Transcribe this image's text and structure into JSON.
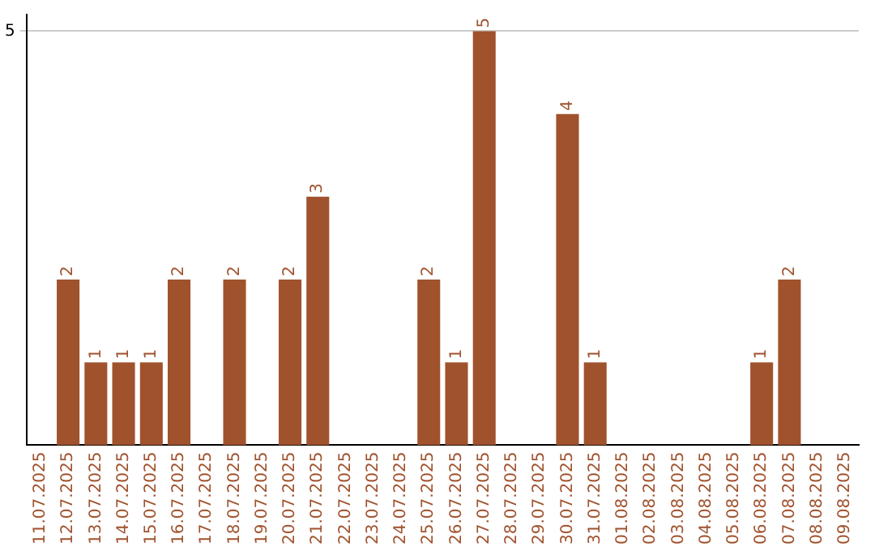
{
  "chart_data": {
    "type": "bar",
    "categories": [
      "11.07.2025",
      "12.07.2025",
      "13.07.2025",
      "14.07.2025",
      "15.07.2025",
      "16.07.2025",
      "17.07.2025",
      "18.07.2025",
      "19.07.2025",
      "20.07.2025",
      "21.07.2025",
      "22.07.2025",
      "23.07.2025",
      "24.07.2025",
      "25.07.2025",
      "26.07.2025",
      "27.07.2025",
      "28.07.2025",
      "29.07.2025",
      "30.07.2025",
      "31.07.2025",
      "01.08.2025",
      "02.08.2025",
      "03.08.2025",
      "04.08.2025",
      "05.08.2025",
      "06.08.2025",
      "07.08.2025",
      "08.08.2025",
      "09.08.2025"
    ],
    "values": [
      0,
      2,
      1,
      1,
      1,
      2,
      0,
      2,
      0,
      2,
      3,
      0,
      0,
      0,
      2,
      1,
      5,
      0,
      0,
      4,
      1,
      0,
      0,
      0,
      0,
      0,
      1,
      2,
      0,
      0
    ],
    "value_labels": [
      null,
      "2",
      "1",
      "1",
      "1",
      "2",
      null,
      "2",
      null,
      "2",
      "3",
      null,
      null,
      null,
      "2",
      "1",
      "5",
      null,
      null,
      "4",
      "1",
      null,
      null,
      null,
      null,
      null,
      "1",
      "2",
      null,
      null
    ],
    "color": "#a0522d",
    "ylim": [
      0,
      5.2
    ],
    "yticks": [
      5
    ],
    "grid": "y"
  }
}
